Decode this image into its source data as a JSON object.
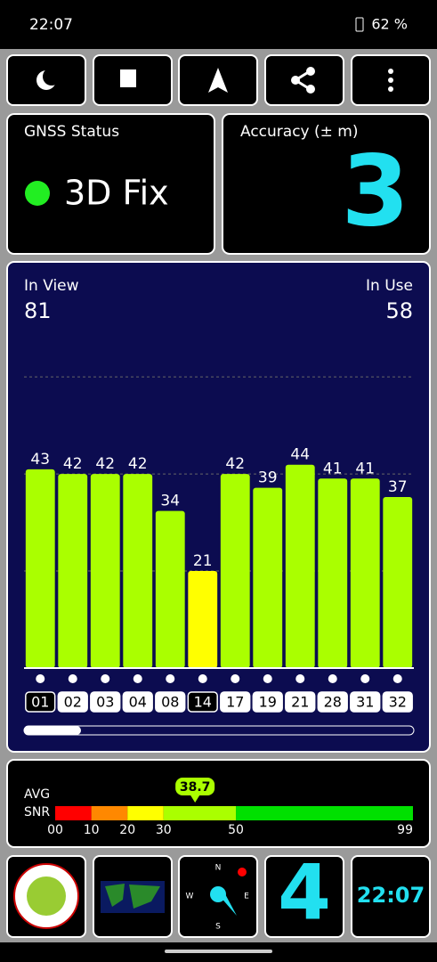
{
  "status_bar": {
    "time": "22:07",
    "battery": "62 %"
  },
  "gnss_status": {
    "label": "GNSS Status",
    "value": "3D Fix"
  },
  "accuracy": {
    "label": "Accuracy (± m)",
    "value": 3
  },
  "satellites": {
    "in_view_label": "In View",
    "in_view": 81,
    "in_use_label": "In Use",
    "in_use": 58,
    "ylim": [
      0,
      85
    ],
    "grid_lines": [
      21,
      42,
      63
    ],
    "ids": [
      "01",
      "02",
      "03",
      "04",
      "08",
      "14",
      "17",
      "19",
      "21",
      "28",
      "31",
      "32"
    ],
    "snr": [
      43,
      42,
      42,
      42,
      34,
      21,
      42,
      39,
      44,
      41,
      41,
      37
    ],
    "colors": [
      "#aaff00",
      "#aaff00",
      "#aaff00",
      "#aaff00",
      "#aaff00",
      "#ffff00",
      "#aaff00",
      "#aaff00",
      "#aaff00",
      "#aaff00",
      "#aaff00",
      "#aaff00"
    ],
    "used": [
      false,
      true,
      true,
      true,
      true,
      false,
      true,
      true,
      true,
      true,
      true,
      true
    ]
  },
  "snr_meter": {
    "avg_label": "AVG",
    "snr_label": "SNR",
    "average": 38.7,
    "xlim": [
      0,
      99
    ],
    "ticks": [
      {
        "value": 0,
        "label": "00"
      },
      10,
      20,
      30,
      50,
      99
    ],
    "bands": [
      {
        "from": 0,
        "to": 10,
        "color": "#ff0000"
      },
      {
        "from": 10,
        "to": 20,
        "color": "#ff8800"
      },
      {
        "from": 20,
        "to": 30,
        "color": "#ffff00"
      },
      {
        "from": 30,
        "to": 50,
        "color": "#aaff00"
      },
      {
        "from": 50,
        "to": 99,
        "color": "#00e000"
      }
    ]
  },
  "tiles": {
    "value": 4,
    "time": "22:07",
    "compass": [
      "N",
      "E",
      "S",
      "W"
    ]
  }
}
